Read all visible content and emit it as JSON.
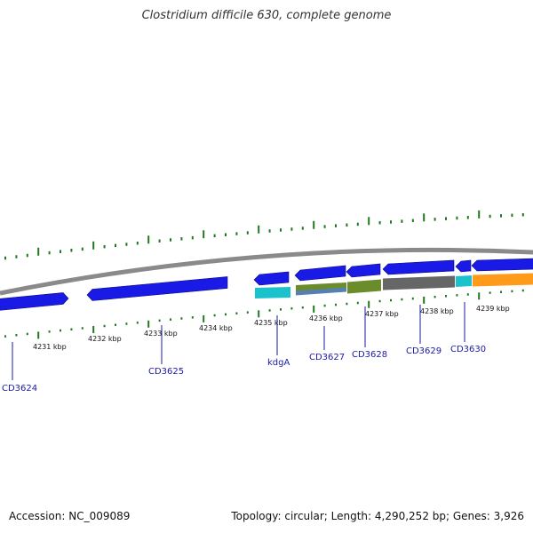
{
  "title": "Clostridium difficile 630, complete genome",
  "footer": {
    "accession": "Accession: NC_009089",
    "summary": "Topology: circular; Length: 4,290,252 bp; Genes: 3,926"
  },
  "colors": {
    "backbone": "#8a8a8a",
    "tick": "#1f7a1f",
    "forward_gene": "#1a1ae6",
    "gene_label": "#1a1aa6",
    "cyan": "#19c2cc",
    "olive": "#6b8c2a",
    "steel": "#5580b0",
    "gray": "#666666",
    "orange": "#ff9a1a"
  },
  "kbp_ticks": [
    {
      "kbp": 4231,
      "label": "4231 kbp"
    },
    {
      "kbp": 4232,
      "label": "4232 kbp"
    },
    {
      "kbp": 4233,
      "label": "4233 kbp"
    },
    {
      "kbp": 4234,
      "label": "4234 kbp"
    },
    {
      "kbp": 4235,
      "label": "4235 kbp"
    },
    {
      "kbp": 4236,
      "label": "4236 kbp"
    },
    {
      "kbp": 4237,
      "label": "4237 kbp"
    },
    {
      "kbp": 4238,
      "label": "4238 kbp"
    },
    {
      "kbp": 4239,
      "label": "4239 kbp"
    }
  ],
  "gene_labels": [
    {
      "id": "CD3624",
      "label": "CD3624"
    },
    {
      "id": "CD3625",
      "label": "CD3625"
    },
    {
      "id": "kdgA",
      "label": "kdgA"
    },
    {
      "id": "CD3627",
      "label": "CD3627"
    },
    {
      "id": "CD3628",
      "label": "CD3628"
    },
    {
      "id": "CD3629",
      "label": "CD3629"
    },
    {
      "id": "CD3630",
      "label": "CD3630"
    }
  ]
}
